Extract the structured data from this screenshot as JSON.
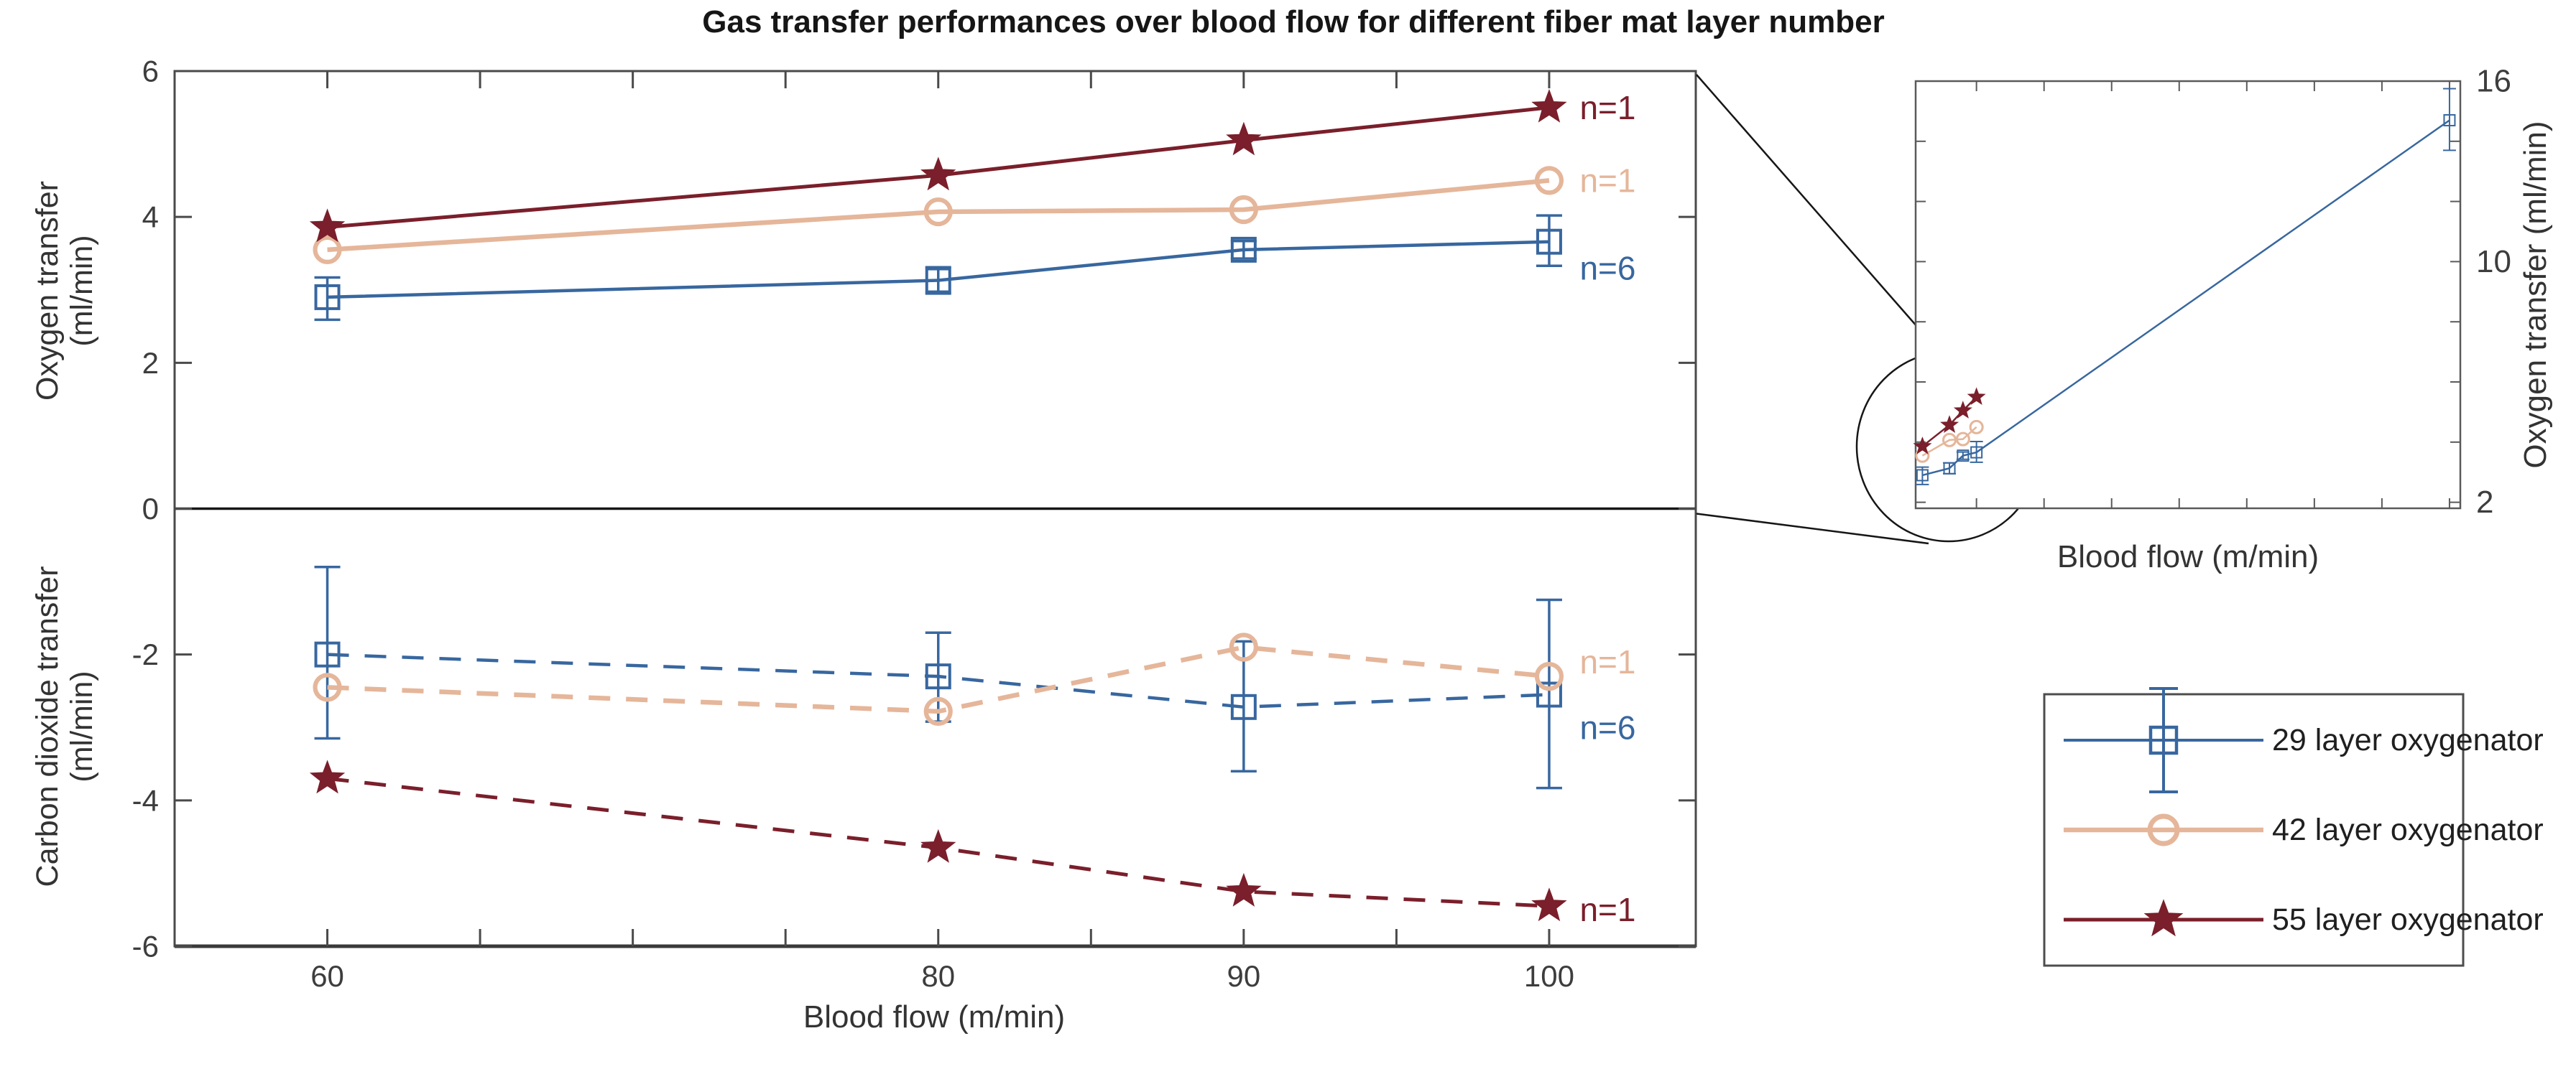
{
  "chart_data": {
    "type": "line",
    "title": "Gas transfer performances over blood flow for different fiber mat layer number",
    "main": {
      "xlabel": "Blood flow (m/min)",
      "ylabel_top_lines": [
        "Oxygen transfer",
        "(ml/min)"
      ],
      "ylabel_bottom_lines": [
        "Carbon dioxide transfer",
        "(ml/min)"
      ],
      "xlim": [
        55,
        104.8
      ],
      "ylim": [
        -6,
        6
      ],
      "xticks": [
        60,
        65,
        70,
        75,
        80,
        85,
        90,
        95,
        100
      ],
      "xtick_labels": [
        "60",
        "",
        "",
        "",
        "80",
        "",
        "90",
        "",
        "100"
      ],
      "yticks": [
        -6,
        -4,
        -2,
        0,
        2,
        4,
        6
      ],
      "ytick_labels": [
        "-6",
        "-4",
        "-2",
        "0",
        "2",
        "4",
        "6"
      ],
      "zero_line": true,
      "x": [
        60,
        80,
        90,
        100
      ],
      "series": [
        {
          "name": "29 layer oxygenator",
          "panel": "oxygen",
          "color": "#38679f",
          "marker": "square",
          "linestyle": "solid",
          "y": [
            2.9,
            3.13,
            3.55,
            3.66
          ],
          "yerr_up": [
            0.27,
            0.18,
            0.12,
            0.36
          ],
          "yerr_down": [
            0.31,
            0.18,
            0.12,
            0.33
          ]
        },
        {
          "name": "42 layer oxygenator",
          "panel": "oxygen",
          "color": "#e5b69a",
          "marker": "circle",
          "linestyle": "solid",
          "y": [
            3.55,
            4.07,
            4.1,
            4.5
          ]
        },
        {
          "name": "55 layer oxygenator",
          "panel": "oxygen",
          "color": "#7a1f2b",
          "marker": "star",
          "linestyle": "solid",
          "y": [
            3.86,
            4.57,
            5.05,
            5.5
          ]
        },
        {
          "name": "29 layer oxygenator",
          "panel": "co2",
          "color": "#38679f",
          "marker": "square",
          "linestyle": "dashed",
          "y": [
            -2.0,
            -2.3,
            -2.72,
            -2.55
          ],
          "yerr_up": [
            1.2,
            0.6,
            0.9,
            1.3
          ],
          "yerr_down": [
            1.15,
            0.62,
            0.88,
            1.28
          ]
        },
        {
          "name": "42 layer oxygenator",
          "panel": "co2",
          "color": "#e5b69a",
          "marker": "circle",
          "linestyle": "dashed",
          "y": [
            -2.45,
            -2.78,
            -1.9,
            -2.3
          ]
        },
        {
          "name": "55 layer oxygenator",
          "panel": "co2",
          "color": "#7a1f2b",
          "marker": "star",
          "linestyle": "dashed",
          "y": [
            -3.7,
            -4.65,
            -5.25,
            -5.45
          ]
        }
      ],
      "annotations": [
        {
          "text": "n=1",
          "color": "#7a1f2b",
          "x": 101,
          "y": 5.5
        },
        {
          "text": "n=1",
          "color": "#e5b69a",
          "x": 101,
          "y": 4.5
        },
        {
          "text": "n=6",
          "color": "#38679f",
          "x": 101,
          "y": 3.3
        },
        {
          "text": "n=1",
          "color": "#e5b69a",
          "x": 101,
          "y": -2.1
        },
        {
          "text": "n=6",
          "color": "#38679f",
          "x": 101,
          "y": -3.0
        },
        {
          "text": "n=1",
          "color": "#7a1f2b",
          "x": 101,
          "y": -5.5
        }
      ]
    },
    "inset": {
      "xlabel": "Blood flow (m/min)",
      "ylabel": "Oxygen transfer (ml/min)",
      "xlim": [
        55,
        458
      ],
      "ylim": [
        1.8,
        16
      ],
      "xticks": [
        100,
        150,
        200,
        250,
        300,
        350,
        400,
        450
      ],
      "yticks": [
        2,
        4,
        6,
        8,
        10,
        12,
        14,
        16
      ],
      "ytick_labels": [
        "2",
        "",
        "",
        "",
        "10",
        "",
        "",
        "16"
      ],
      "series": [
        {
          "name": "29 layer oxygenator",
          "color": "#38679f",
          "marker": "square",
          "x": [
            60,
            80,
            90,
            100,
            450
          ],
          "y": [
            2.9,
            3.13,
            3.55,
            3.66,
            14.7
          ],
          "yerr_up": [
            0.27,
            0.18,
            0.12,
            0.36,
            1.05
          ],
          "yerr_down": [
            0.31,
            0.18,
            0.12,
            0.33,
            1.0
          ]
        },
        {
          "name": "42 layer oxygenator",
          "color": "#e5b69a",
          "marker": "circle",
          "x": [
            60,
            80,
            90,
            100
          ],
          "y": [
            3.55,
            4.07,
            4.1,
            4.5
          ]
        },
        {
          "name": "55 layer oxygenator",
          "color": "#7a1f2b",
          "marker": "star",
          "x": [
            60,
            80,
            90,
            100
          ],
          "y": [
            3.86,
            4.57,
            5.05,
            5.5
          ]
        }
      ]
    },
    "legend": {
      "items": [
        {
          "label": "29 layer oxygenator",
          "color": "#38679f",
          "marker": "square-errorbar"
        },
        {
          "label": "42 layer oxygenator",
          "color": "#e5b69a",
          "marker": "circle"
        },
        {
          "label": "55 layer oxygenator",
          "color": "#7a1f2b",
          "marker": "star"
        }
      ]
    },
    "style": {
      "frame_color": "#4a4a4a",
      "heavy_line_color": "#161616",
      "text_color": "#333333",
      "tick_label_color": "#3d3d3d",
      "background": "#ffffff"
    }
  }
}
